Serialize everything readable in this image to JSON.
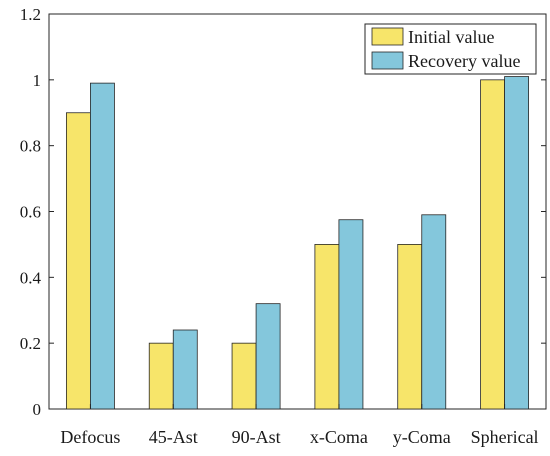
{
  "chart_data": {
    "type": "bar",
    "categories": [
      "Defocus",
      "45-Ast",
      "90-Ast",
      "x-Coma",
      "y-Coma",
      "Spherical"
    ],
    "series": [
      {
        "name": "Initial value",
        "values": [
          0.9,
          0.2,
          0.2,
          0.5,
          0.5,
          1.0
        ],
        "color": "#f7e56a"
      },
      {
        "name": "Recovery value",
        "values": [
          0.99,
          0.24,
          0.32,
          0.575,
          0.59,
          1.01
        ],
        "color": "#84c7dc"
      }
    ],
    "ylim": [
      0,
      1.2
    ],
    "yticks": [
      "0",
      "0.2",
      "0.4",
      "0.6",
      "0.8",
      "1",
      "1.2"
    ],
    "grid": false,
    "legend": "top-right",
    "title": "",
    "xlabel": "",
    "ylabel": ""
  }
}
